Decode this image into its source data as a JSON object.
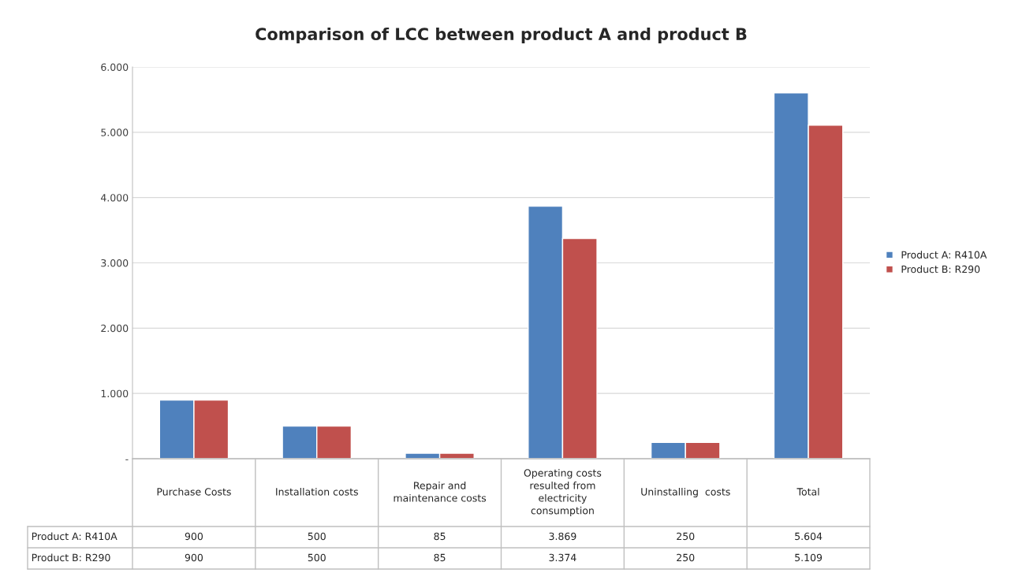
{
  "chart_data": {
    "type": "bar",
    "title": "Comparison of LCC between product A and product B",
    "categories": [
      "Purchase Costs",
      "Installation costs",
      "Repair and maintenance costs",
      "Operating costs resulted from electricity consumption",
      "Uninstalling  costs",
      "Total"
    ],
    "series": [
      {
        "name": "Product A: R410A",
        "color": "#4f81bd",
        "values": [
          900,
          500,
          85,
          3869,
          250,
          5604
        ],
        "value_labels": [
          "900",
          "500",
          "85",
          "3.869",
          "250",
          "5.604"
        ]
      },
      {
        "name": "Product B: R290",
        "color": "#c0504d",
        "values": [
          900,
          500,
          85,
          3374,
          250,
          5109
        ],
        "value_labels": [
          "900",
          "500",
          "85",
          "3.374",
          "250",
          "5.109"
        ]
      }
    ],
    "ylim": [
      0,
      6000
    ],
    "yticks": [
      {
        "value": 0,
        "label": "-"
      },
      {
        "value": 1000,
        "label": "1.000"
      },
      {
        "value": 2000,
        "label": "2.000"
      },
      {
        "value": 3000,
        "label": "3.000"
      },
      {
        "value": 4000,
        "label": "4.000"
      },
      {
        "value": 5000,
        "label": "5.000"
      },
      {
        "value": 6000,
        "label": "6.000"
      }
    ],
    "grid": "y",
    "legend": "right"
  }
}
